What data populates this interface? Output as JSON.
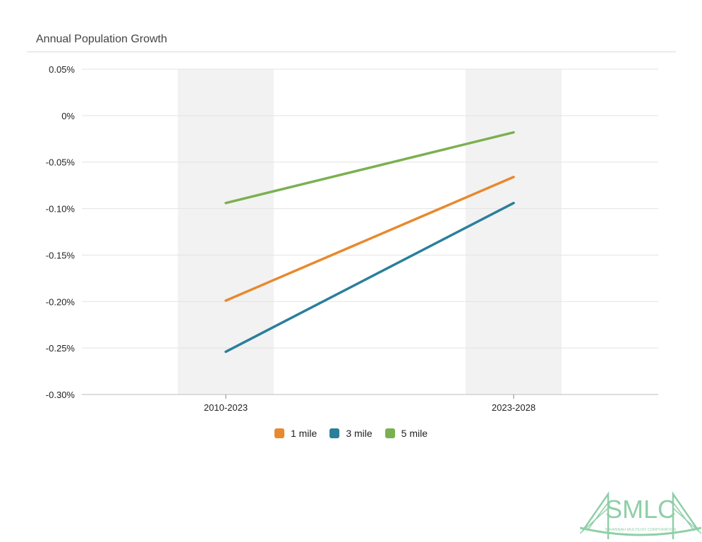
{
  "chart_data": {
    "type": "line",
    "title": "Annual Population Growth",
    "categories": [
      "2010-2023",
      "2023-2028"
    ],
    "series": [
      {
        "name": "1 mile",
        "values": [
          -0.199,
          -0.066
        ],
        "color": "#e8892d"
      },
      {
        "name": "3 mile",
        "values": [
          -0.254,
          -0.094
        ],
        "color": "#2a7f9b"
      },
      {
        "name": "5 mile",
        "values": [
          -0.094,
          -0.018
        ],
        "color": "#7bb050"
      }
    ],
    "ylim": [
      -0.3,
      0.05
    ],
    "yticks": [
      "0.05%",
      "0%",
      "-0.05%",
      "-0.10%",
      "-0.15%",
      "-0.20%",
      "-0.25%",
      "-0.30%"
    ],
    "ytick_values": [
      0.05,
      0,
      -0.05,
      -0.1,
      -0.15,
      -0.2,
      -0.25,
      -0.3
    ],
    "grid": true,
    "legend_position": "bottom-center",
    "band_color": "#f2f2f2"
  },
  "logo": {
    "text": "SMLC",
    "subtext": "SAVANNAH MULTILIST CORPORATION",
    "color": "#8fcfa8"
  }
}
